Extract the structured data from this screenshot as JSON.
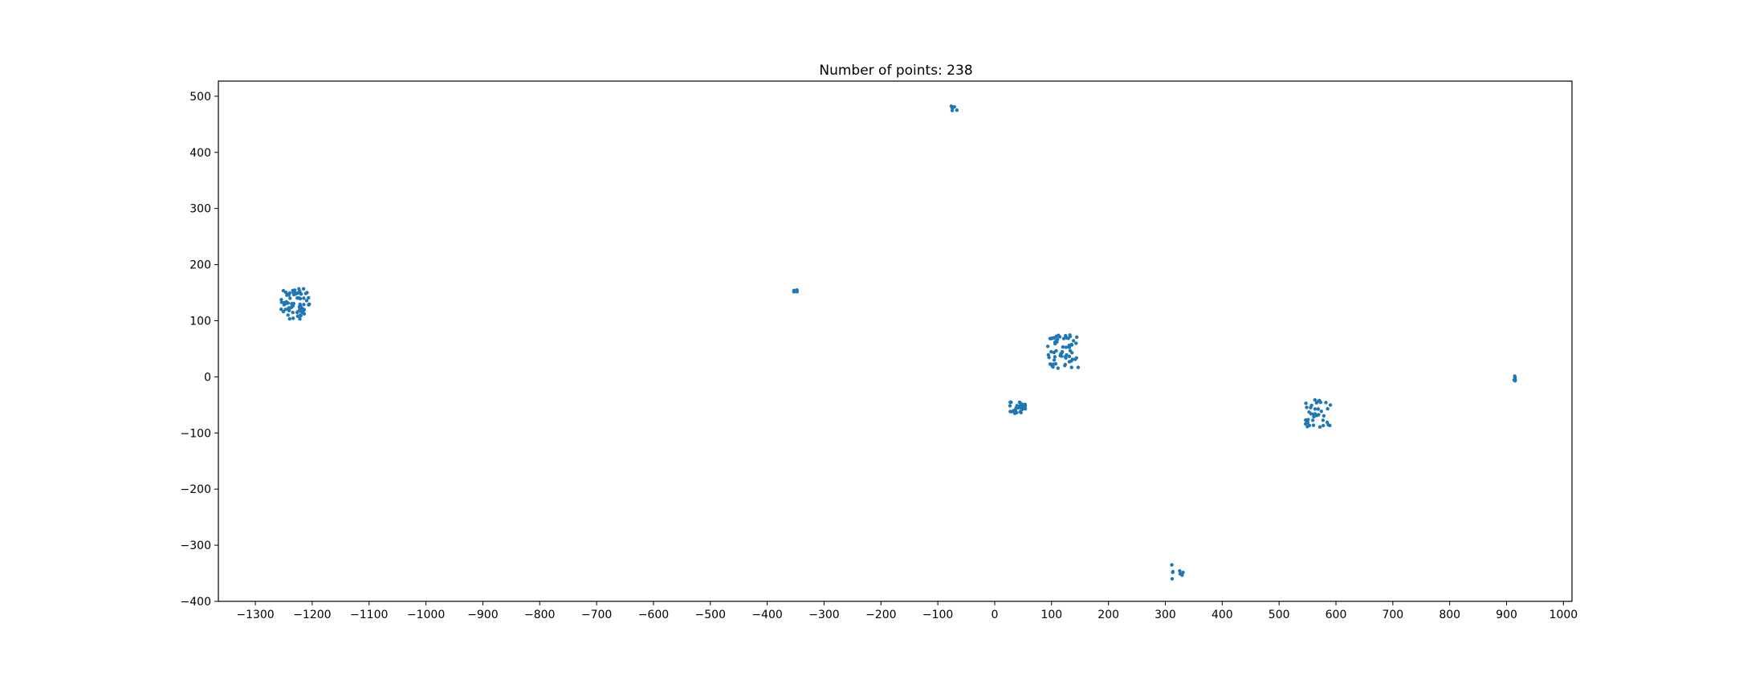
{
  "chart_data": {
    "type": "scatter",
    "title": "Number of points: 238",
    "xlabel": "",
    "ylabel": "",
    "xlim": [
      -1365,
      1015
    ],
    "ylim": [
      -400,
      527
    ],
    "x_ticks": [
      -1300,
      -1200,
      -1100,
      -1000,
      -900,
      -800,
      -700,
      -600,
      -500,
      -400,
      -300,
      -200,
      -100,
      0,
      100,
      200,
      300,
      400,
      500,
      600,
      700,
      800,
      900,
      1000
    ],
    "y_ticks": [
      -400,
      -300,
      -200,
      -100,
      0,
      100,
      200,
      300,
      400,
      500
    ],
    "x_tick_labels": [
      "−1300",
      "−1200",
      "−1100",
      "−1000",
      "−900",
      "−800",
      "−700",
      "−600",
      "−500",
      "−400",
      "−300",
      "−200",
      "−100",
      "0",
      "100",
      "200",
      "300",
      "400",
      "500",
      "600",
      "700",
      "800",
      "900",
      "1000"
    ],
    "y_tick_labels": [
      "−400",
      "−300",
      "−200",
      "−100",
      "0",
      "100",
      "200",
      "300",
      "400",
      "500"
    ],
    "grid": false,
    "legend": "none",
    "marker_color": "#1f77b4",
    "clusters": [
      {
        "cx": -1230,
        "cy": 130,
        "sx": 25,
        "sy": 27,
        "n": 76
      },
      {
        "cx": 120,
        "cy": 45,
        "sx": 28,
        "sy": 30,
        "n": 64
      },
      {
        "cx": 40,
        "cy": -55,
        "sx": 14,
        "sy": 10,
        "n": 36
      },
      {
        "cx": 570,
        "cy": -65,
        "sx": 24,
        "sy": 26,
        "n": 38
      },
      {
        "cx": -352,
        "cy": 152,
        "sx": 5,
        "sy": 3,
        "n": 6
      },
      {
        "cx": -72,
        "cy": 479,
        "sx": 6,
        "sy": 5,
        "n": 5
      },
      {
        "cx": 320,
        "cy": -345,
        "sx": 12,
        "sy": 15,
        "n": 8
      },
      {
        "cx": 912,
        "cy": -3,
        "sx": 6,
        "sy": 5,
        "n": 5
      }
    ]
  }
}
